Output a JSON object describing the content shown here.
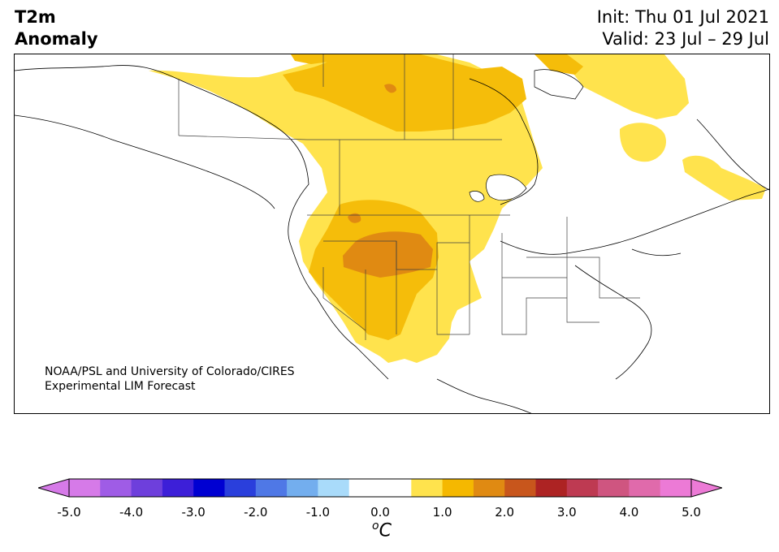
{
  "title": {
    "left_line1": "T2m",
    "left_line2": "Anomaly",
    "init": "Init: Thu 01 Jul 2021",
    "valid": "Valid: 23 Jul – 29 Jul"
  },
  "credit": {
    "line1": "NOAA/PSL and University of Colorado/CIRES",
    "line2": "Experimental LIM Forecast"
  },
  "colorbar": {
    "ticks": [
      "-5.0",
      "-4.0",
      "-3.0",
      "-2.0",
      "-1.0",
      "0.0",
      "1.0",
      "2.0",
      "3.0",
      "4.0",
      "5.0"
    ],
    "min": -5.0,
    "max": 5.0,
    "step": 0.5,
    "colors": [
      "#d67ae8",
      "#9f5ce6",
      "#6e3fdc",
      "#3d1fd8",
      "#0000d2",
      "#2a3fdc",
      "#4f78e6",
      "#73aeee",
      "#a9dbfa",
      "#ffffff",
      "#ffffff",
      "#ffe34d",
      "#f5b800",
      "#e08a12",
      "#c8561c",
      "#ad2323",
      "#be3a52",
      "#cf5580",
      "#e06aab",
      "#ec7ad6"
    ],
    "unit_base": "C",
    "unit_sup": "o",
    "extend": "both"
  },
  "map": {
    "region": "North America",
    "field": "2m temperature anomaly",
    "levels_present": [
      "0.5-1.0",
      "1.0-1.5",
      "1.5-2.0"
    ],
    "level_colors": {
      "0.5-1.0": "#ffe34d",
      "1.0-1.5": "#f5bd0a",
      "1.5-2.0": "#e08a12"
    },
    "coast_color": "#000000",
    "border_color": "#404040"
  }
}
